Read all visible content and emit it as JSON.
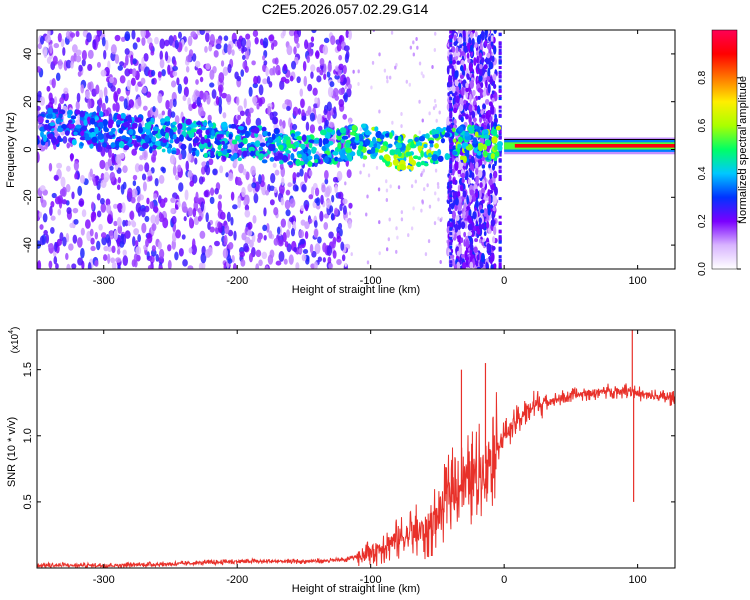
{
  "title": "C2E5.2026.057.02.29.G14",
  "chart_data": [
    {
      "type": "heatmap",
      "xlabel": "Height of straight line (km)",
      "ylabel": "Frequency (Hz)",
      "xlim": [
        -350,
        128
      ],
      "ylim": [
        -50,
        50
      ],
      "x_ticks": [
        -300,
        -200,
        -100,
        0,
        100
      ],
      "y_ticks": [
        -40,
        -20,
        0,
        20,
        40
      ],
      "colorbar": {
        "label": "Normalized spectral amplitude",
        "range": [
          0,
          1
        ],
        "ticks": [
          "0.0",
          "0.2",
          "0.4",
          "0.6",
          "0.8"
        ],
        "colors": [
          "#ffffff",
          "#d8b4ff",
          "#7a00ff",
          "#0033ff",
          "#00c8ff",
          "#00ff66",
          "#aaff00",
          "#ffee00",
          "#ff7700",
          "#ff0000",
          "#ff0055"
        ]
      },
      "signal_trace": [
        {
          "x": -350,
          "freq": 10,
          "amp": 0.35
        },
        {
          "x": -300,
          "freq": 8,
          "amp": 0.38
        },
        {
          "x": -250,
          "freq": 6,
          "amp": 0.42
        },
        {
          "x": -200,
          "freq": 3,
          "amp": 0.45
        },
        {
          "x": -150,
          "freq": 0,
          "amp": 0.48
        },
        {
          "x": -120,
          "freq": 2,
          "amp": 0.5
        },
        {
          "x": -100,
          "freq": 4,
          "amp": 0.55
        },
        {
          "x": -80,
          "freq": -1,
          "amp": 0.6
        },
        {
          "x": -60,
          "freq": -1,
          "amp": 0.62
        },
        {
          "x": -45,
          "freq": 2,
          "amp": 0.55
        },
        {
          "x": -5,
          "freq": 3,
          "amp": 0.6
        },
        {
          "x": 10,
          "freq": 1.5,
          "amp": 0.9
        },
        {
          "x": 50,
          "freq": 1.5,
          "amp": 0.95
        },
        {
          "x": 90,
          "freq": 1.5,
          "amp": 0.92
        },
        {
          "x": 128,
          "freq": 1.5,
          "amp": 0.9
        }
      ]
    },
    {
      "type": "line",
      "xlabel": "Height of straight line (km)",
      "ylabel": "SNR (10 * v/v)",
      "y_multiplier": "(x10",
      "y_multiplier_exp": "4",
      "xlim": [
        -350,
        128
      ],
      "ylim": [
        0,
        1.8
      ],
      "x_ticks": [
        -300,
        -200,
        -100,
        0,
        100
      ],
      "y_ticks": [
        "0.5",
        "1.0",
        "1.5"
      ],
      "series": [
        {
          "color": "#e8312a",
          "x": [
            -350,
            -300,
            -250,
            -200,
            -150,
            -120,
            -100,
            -80,
            -60,
            -50,
            -40,
            -30,
            -20,
            -10,
            0,
            10,
            20,
            30,
            40,
            50,
            60,
            70,
            80,
            90,
            95,
            100,
            110,
            120,
            128
          ],
          "values": [
            0.02,
            0.02,
            0.03,
            0.05,
            0.05,
            0.06,
            0.12,
            0.22,
            0.28,
            0.38,
            0.6,
            0.65,
            0.7,
            0.85,
            1.0,
            1.12,
            1.22,
            1.25,
            1.28,
            1.3,
            1.32,
            1.33,
            1.34,
            1.34,
            1.35,
            1.32,
            1.3,
            1.29,
            1.28
          ]
        }
      ],
      "spikes": [
        {
          "x": -32,
          "y": 1.5
        },
        {
          "x": -14,
          "y": 1.55
        },
        {
          "x": 96,
          "y": 1.85
        },
        {
          "x": 97,
          "y": 0.5
        }
      ]
    }
  ]
}
